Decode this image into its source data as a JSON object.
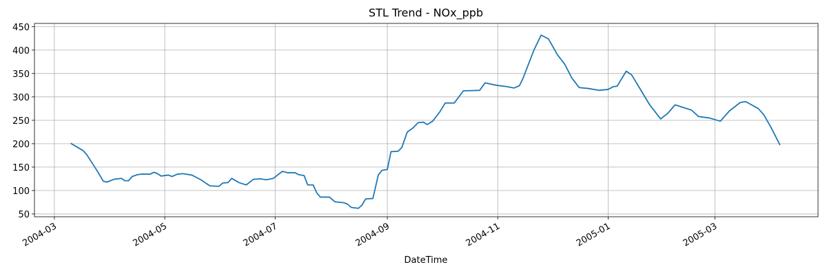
{
  "chart_data": {
    "type": "line",
    "title": "STL Trend - NOx_ppb",
    "x_label": "DateTime",
    "x": [
      "2004-03-10",
      "2004-03-17",
      "2004-03-19",
      "2004-03-25",
      "2004-03-28",
      "2004-03-30",
      "2004-04-03",
      "2004-04-07",
      "2004-04-09",
      "2004-04-11",
      "2004-04-13",
      "2004-04-16",
      "2004-04-18",
      "2004-04-23",
      "2004-04-25",
      "2004-04-27",
      "2004-04-29",
      "2004-05-03",
      "2004-05-05",
      "2004-05-08",
      "2004-05-11",
      "2004-05-16",
      "2004-05-21",
      "2004-05-24",
      "2004-05-26",
      "2004-05-31",
      "2004-06-02",
      "2004-06-05",
      "2004-06-07",
      "2004-06-11",
      "2004-06-15",
      "2004-06-19",
      "2004-06-23",
      "2004-06-26",
      "2004-06-30",
      "2004-07-02",
      "2004-07-05",
      "2004-07-08",
      "2004-07-12",
      "2004-07-14",
      "2004-07-17",
      "2004-07-19",
      "2004-07-22",
      "2004-07-24",
      "2004-07-26",
      "2004-07-31",
      "2004-08-03",
      "2004-08-08",
      "2004-08-10",
      "2004-08-12",
      "2004-08-16",
      "2004-08-18",
      "2004-08-20",
      "2004-08-24",
      "2004-08-27",
      "2004-08-29",
      "2004-09-01",
      "2004-09-03",
      "2004-09-07",
      "2004-09-09",
      "2004-09-12",
      "2004-09-15",
      "2004-09-18",
      "2004-09-21",
      "2004-09-23",
      "2004-09-26",
      "2004-09-30",
      "2004-10-03",
      "2004-10-08",
      "2004-10-13",
      "2004-10-22",
      "2004-10-25",
      "2004-10-31",
      "2004-11-06",
      "2004-11-10",
      "2004-11-13",
      "2004-11-15",
      "2004-11-21",
      "2004-11-25",
      "2004-11-29",
      "2004-12-04",
      "2004-12-08",
      "2004-12-12",
      "2004-12-16",
      "2004-12-21",
      "2004-12-27",
      "2005-01-01",
      "2005-01-04",
      "2005-01-06",
      "2005-01-11",
      "2005-01-14",
      "2005-01-19",
      "2005-01-24",
      "2005-01-27",
      "2005-01-30",
      "2005-02-03",
      "2005-02-07",
      "2005-02-11",
      "2005-02-16",
      "2005-02-20",
      "2005-02-26",
      "2005-03-04",
      "2005-03-09",
      "2005-03-15",
      "2005-03-18",
      "2005-03-25",
      "2005-03-28",
      "2005-04-01",
      "2005-04-06"
    ],
    "series": [
      {
        "name": "NOx_ppb",
        "color": "#1f77b4",
        "values": [
          201,
          185,
          176,
          140,
          120,
          118,
          124,
          126,
          121,
          121,
          130,
          134,
          135,
          135,
          139,
          136,
          131,
          133,
          130,
          135,
          136,
          133,
          123,
          115,
          110,
          109,
          116,
          117,
          126,
          117,
          112,
          124,
          125,
          123,
          126,
          132,
          141,
          138,
          138,
          134,
          132,
          112,
          112,
          95,
          86,
          86,
          76,
          74,
          71,
          64,
          62,
          69,
          82,
          83,
          133,
          143,
          145,
          183,
          184,
          192,
          225,
          233,
          245,
          246,
          241,
          248,
          268,
          287,
          287,
          313,
          314,
          330,
          325,
          322,
          319,
          324,
          340,
          400,
          432,
          424,
          390,
          370,
          340,
          320,
          318,
          314,
          316,
          322,
          323,
          355,
          347,
          315,
          283,
          268,
          253,
          265,
          283,
          278,
          272,
          258,
          255,
          248,
          270,
          288,
          290,
          275,
          262,
          235,
          197
        ]
      }
    ],
    "xlim": [
      "2004-02-19",
      "2005-04-27"
    ],
    "xticks": [
      "2004-03",
      "2004-05",
      "2004-07",
      "2004-09",
      "2004-11",
      "2005-01",
      "2005-03"
    ],
    "ylim": [
      44,
      457
    ],
    "yticks": [
      50,
      100,
      150,
      200,
      250,
      300,
      350,
      400,
      450
    ],
    "grid": true
  }
}
